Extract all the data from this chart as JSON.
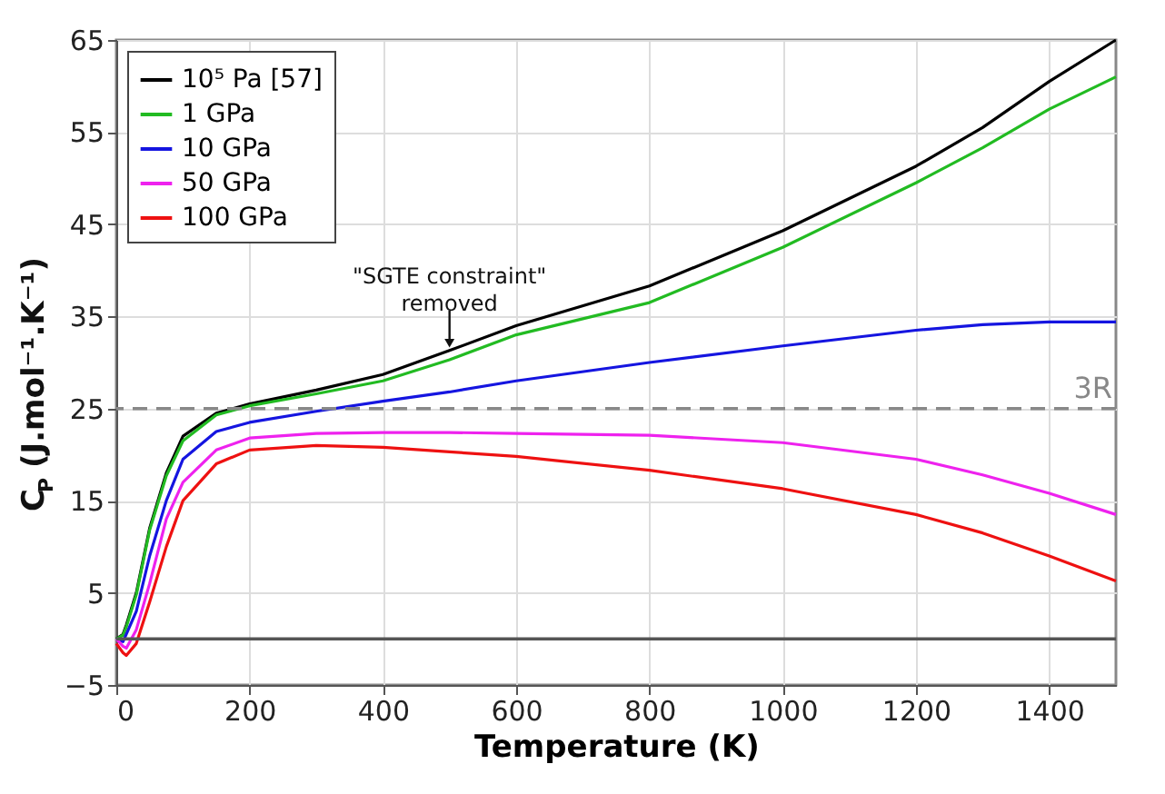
{
  "chart_data": {
    "type": "line",
    "xlabel": "Temperature (K)",
    "ylabel": "C$_{P}$ (J.mol⁻¹.K⁻¹)",
    "x": [
      0,
      10,
      15,
      30,
      50,
      75,
      100,
      150,
      200,
      300,
      400,
      500,
      600,
      800,
      1000,
      1200,
      1300,
      1400,
      1500
    ],
    "series": [
      {
        "name": "10⁵ Pa [57]",
        "color": "#000000",
        "values": [
          0,
          0.5,
          1.5,
          5,
          12,
          18,
          22,
          24.5,
          25.5,
          27,
          28.7,
          31.3,
          34,
          38.3,
          44.3,
          51.3,
          55.5,
          60.5,
          65
        ]
      },
      {
        "name": "1 GPa",
        "color": "#22bb22",
        "values": [
          0,
          0.4,
          1.3,
          4.8,
          11.8,
          17.7,
          21.5,
          24.3,
          25.3,
          26.6,
          28,
          30.3,
          33,
          36.5,
          42.5,
          49.5,
          53.3,
          57.5,
          61
        ]
      },
      {
        "name": "10 GPa",
        "color": "#1515e0",
        "values": [
          0,
          -0.3,
          0.5,
          3,
          9,
          15,
          19.5,
          22.5,
          23.5,
          24.7,
          25.8,
          26.8,
          28,
          30,
          31.8,
          33.5,
          34.1,
          34.4,
          34.4
        ]
      },
      {
        "name": "50 GPa",
        "color": "#ee22ee",
        "values": [
          0,
          -0.8,
          -1,
          1,
          6,
          13,
          17,
          20.5,
          21.8,
          22.3,
          22.4,
          22.4,
          22.3,
          22.1,
          21.3,
          19.5,
          17.8,
          15.8,
          13.5
        ]
      },
      {
        "name": "100 GPa",
        "color": "#ee1111",
        "values": [
          -0.5,
          -1.5,
          -1.8,
          -0.5,
          4,
          10,
          15,
          19,
          20.5,
          21,
          20.8,
          20.3,
          19.8,
          18.3,
          16.3,
          13.5,
          11.5,
          9,
          6.3
        ]
      }
    ],
    "xlim": [
      0,
      1500
    ],
    "xticks": [
      0,
      200,
      400,
      600,
      800,
      1000,
      1200,
      1400
    ],
    "ylim": [
      -5,
      65
    ],
    "yticks": [
      -5,
      5,
      15,
      25,
      35,
      45,
      55,
      65
    ],
    "ref_lines": [
      {
        "axis": "y",
        "value": 25,
        "label": "3R",
        "color": "#888888",
        "line_style": "dashed"
      },
      {
        "axis": "y",
        "value": 0,
        "color": "#555555",
        "line_style": "solid"
      }
    ],
    "annotations": [
      {
        "text": "\"SGTE constraint\"\nremoved",
        "x": 500,
        "y": 31.3
      }
    ],
    "grid": true,
    "legend": "top left",
    "line_style": "solid",
    "marker": "none"
  }
}
